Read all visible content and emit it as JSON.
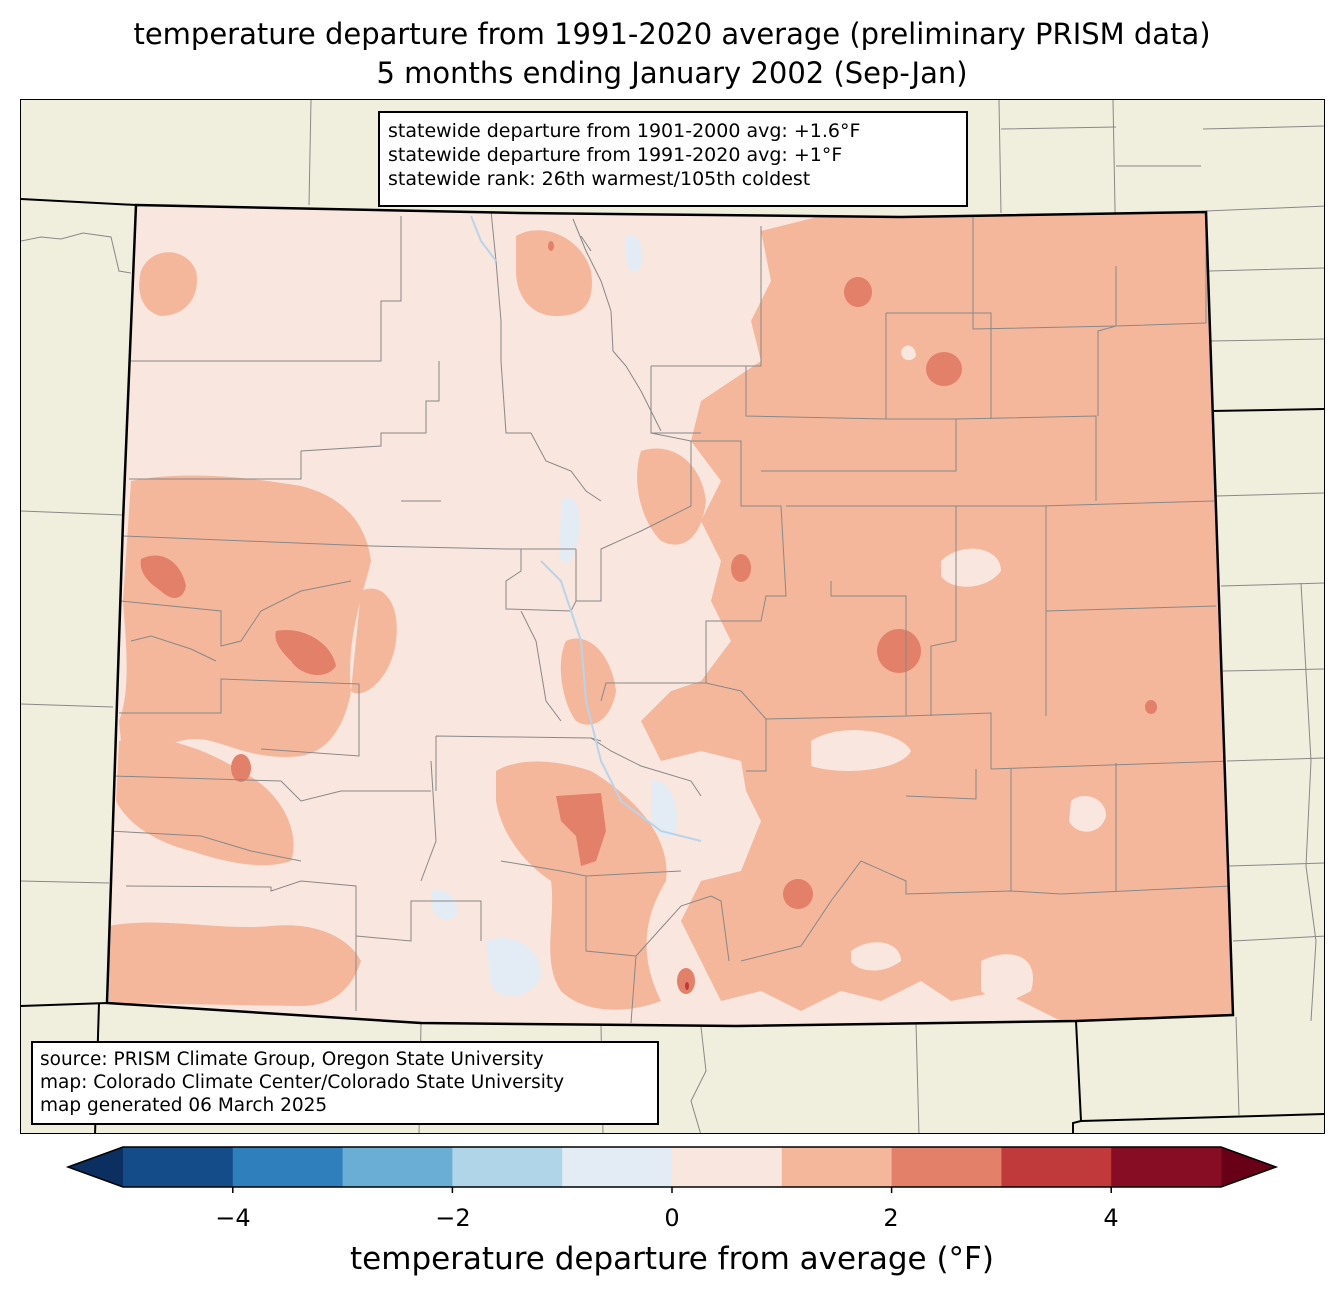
{
  "title": {
    "line1": "temperature departure from 1991-2020 average (preliminary PRISM data)",
    "line2": "5 months ending January 2002 (Sep-Jan)"
  },
  "stats": {
    "line1": "statewide departure from 1901-2000 avg: +1.6°F",
    "line2": "statewide departure from 1991-2020 avg: +1°F",
    "line3": "statewide rank: 26th warmest/105th coldest"
  },
  "source": {
    "line1": "source: PRISM Climate Group, Oregon State University",
    "line2": "map: Colorado Climate Center/Colorado State University",
    "line3": "map generated 06 March 2025"
  },
  "colorbar": {
    "label": "temperature departure from average (°F)",
    "ticks": [
      "−4",
      "−2",
      "0",
      "2",
      "4"
    ],
    "tick_values": [
      -4,
      -2,
      0,
      2,
      4
    ],
    "bounds": [
      -5,
      -4,
      -3,
      -2,
      -1,
      0,
      1,
      2,
      3,
      4,
      5
    ],
    "colors": [
      "#144c8a",
      "#2f7fbc",
      "#6aaed6",
      "#b1d5e8",
      "#e3ecf4",
      "#f9e6de",
      "#f5b79b",
      "#e2806a",
      "#c03a3c",
      "#870d25"
    ],
    "extend_low_color": "#0a2f60",
    "extend_high_color": "#680018"
  },
  "map_colors": {
    "background": "#f0eedc",
    "state_fill": "#f9e6de",
    "warm1": "#f5b79b",
    "warm2": "#e2806a",
    "warm3": "#c03a3c",
    "cool": "#e3ecf4",
    "county_line": "#888888",
    "state_line": "#000000"
  }
}
